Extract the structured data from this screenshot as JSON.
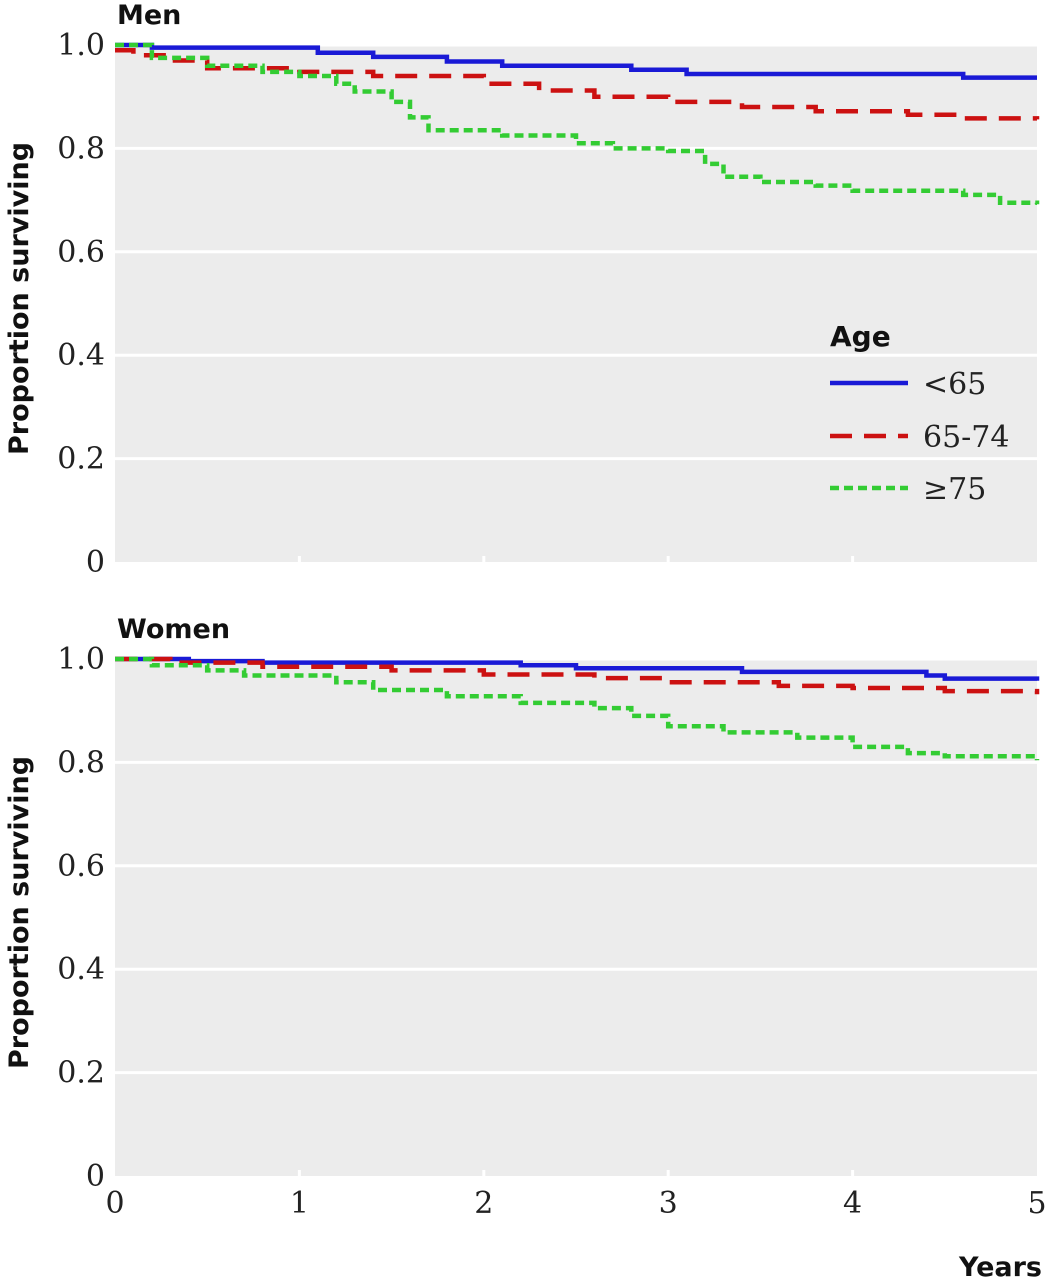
{
  "chart_data": [
    {
      "type": "line",
      "title": "Men",
      "xlabel": "",
      "ylabel": "Proportion surviving",
      "xlim": [
        0,
        5
      ],
      "ylim": [
        0,
        1
      ],
      "x_ticks": [],
      "y_ticks": [
        "0",
        "0.2",
        "0.4",
        "0.6",
        "0.8",
        "1.0"
      ],
      "grid": true,
      "legend": {
        "title": "Age",
        "placement": "right",
        "entries": [
          "<65",
          "65-74",
          "≥75"
        ]
      },
      "series": [
        {
          "name": "<65",
          "color": "#1a1ad6",
          "style": "solid",
          "x": [
            0,
            0.2,
            1.1,
            1.4,
            1.8,
            2.1,
            2.8,
            3.1,
            4.6,
            5
          ],
          "y": [
            1.0,
            0.995,
            0.985,
            0.977,
            0.968,
            0.96,
            0.952,
            0.944,
            0.937,
            0.937
          ]
        },
        {
          "name": "65-74",
          "color": "#cc1111",
          "style": "dashed",
          "x": [
            0,
            0.1,
            0.3,
            0.5,
            1.0,
            1.4,
            2.0,
            2.3,
            2.6,
            3.0,
            3.4,
            3.8,
            4.3,
            4.6,
            5
          ],
          "y": [
            0.99,
            0.98,
            0.97,
            0.955,
            0.948,
            0.94,
            0.925,
            0.912,
            0.9,
            0.89,
            0.88,
            0.872,
            0.865,
            0.858,
            0.856
          ]
        },
        {
          "name": "≥75",
          "color": "#33cc33",
          "style": "dotted-dash",
          "x": [
            0,
            0.2,
            0.5,
            0.8,
            1.0,
            1.2,
            1.3,
            1.5,
            1.6,
            1.7,
            2.1,
            2.5,
            2.7,
            3.0,
            3.2,
            3.3,
            3.5,
            3.8,
            4.0,
            4.6,
            4.8,
            5
          ],
          "y": [
            1.0,
            0.975,
            0.96,
            0.948,
            0.94,
            0.925,
            0.91,
            0.89,
            0.86,
            0.835,
            0.825,
            0.81,
            0.8,
            0.795,
            0.77,
            0.745,
            0.735,
            0.728,
            0.718,
            0.71,
            0.695,
            0.692
          ]
        }
      ]
    },
    {
      "type": "line",
      "title": "Women",
      "xlabel": "Years",
      "ylabel": "Proportion surviving",
      "xlim": [
        0,
        5
      ],
      "ylim": [
        0,
        1
      ],
      "x_ticks": [
        "0",
        "1",
        "2",
        "3",
        "4",
        "5"
      ],
      "y_ticks": [
        "0",
        "0.2",
        "0.4",
        "0.6",
        "0.8",
        "1.0"
      ],
      "grid": true,
      "series": [
        {
          "name": "<65",
          "color": "#1a1ad6",
          "style": "solid",
          "x": [
            0,
            0.4,
            0.8,
            2.2,
            2.5,
            3.4,
            4.4,
            4.5,
            5
          ],
          "y": [
            1.0,
            0.996,
            0.993,
            0.988,
            0.982,
            0.975,
            0.968,
            0.962,
            0.958
          ]
        },
        {
          "name": "65-74",
          "color": "#cc1111",
          "style": "dashed",
          "x": [
            0,
            0.3,
            0.8,
            1.5,
            2.0,
            2.6,
            3.0,
            3.6,
            4.0,
            4.5,
            5
          ],
          "y": [
            1.0,
            0.993,
            0.985,
            0.978,
            0.97,
            0.963,
            0.955,
            0.948,
            0.944,
            0.938,
            0.932
          ]
        },
        {
          "name": "≥75",
          "color": "#33cc33",
          "style": "dotted-dash",
          "x": [
            0,
            0.2,
            0.5,
            0.7,
            1.2,
            1.4,
            1.8,
            2.2,
            2.6,
            2.8,
            3.0,
            3.3,
            3.7,
            4.0,
            4.3,
            4.5,
            5
          ],
          "y": [
            1.0,
            0.988,
            0.978,
            0.968,
            0.955,
            0.94,
            0.928,
            0.915,
            0.905,
            0.89,
            0.87,
            0.858,
            0.848,
            0.83,
            0.818,
            0.812,
            0.804
          ]
        }
      ]
    }
  ]
}
